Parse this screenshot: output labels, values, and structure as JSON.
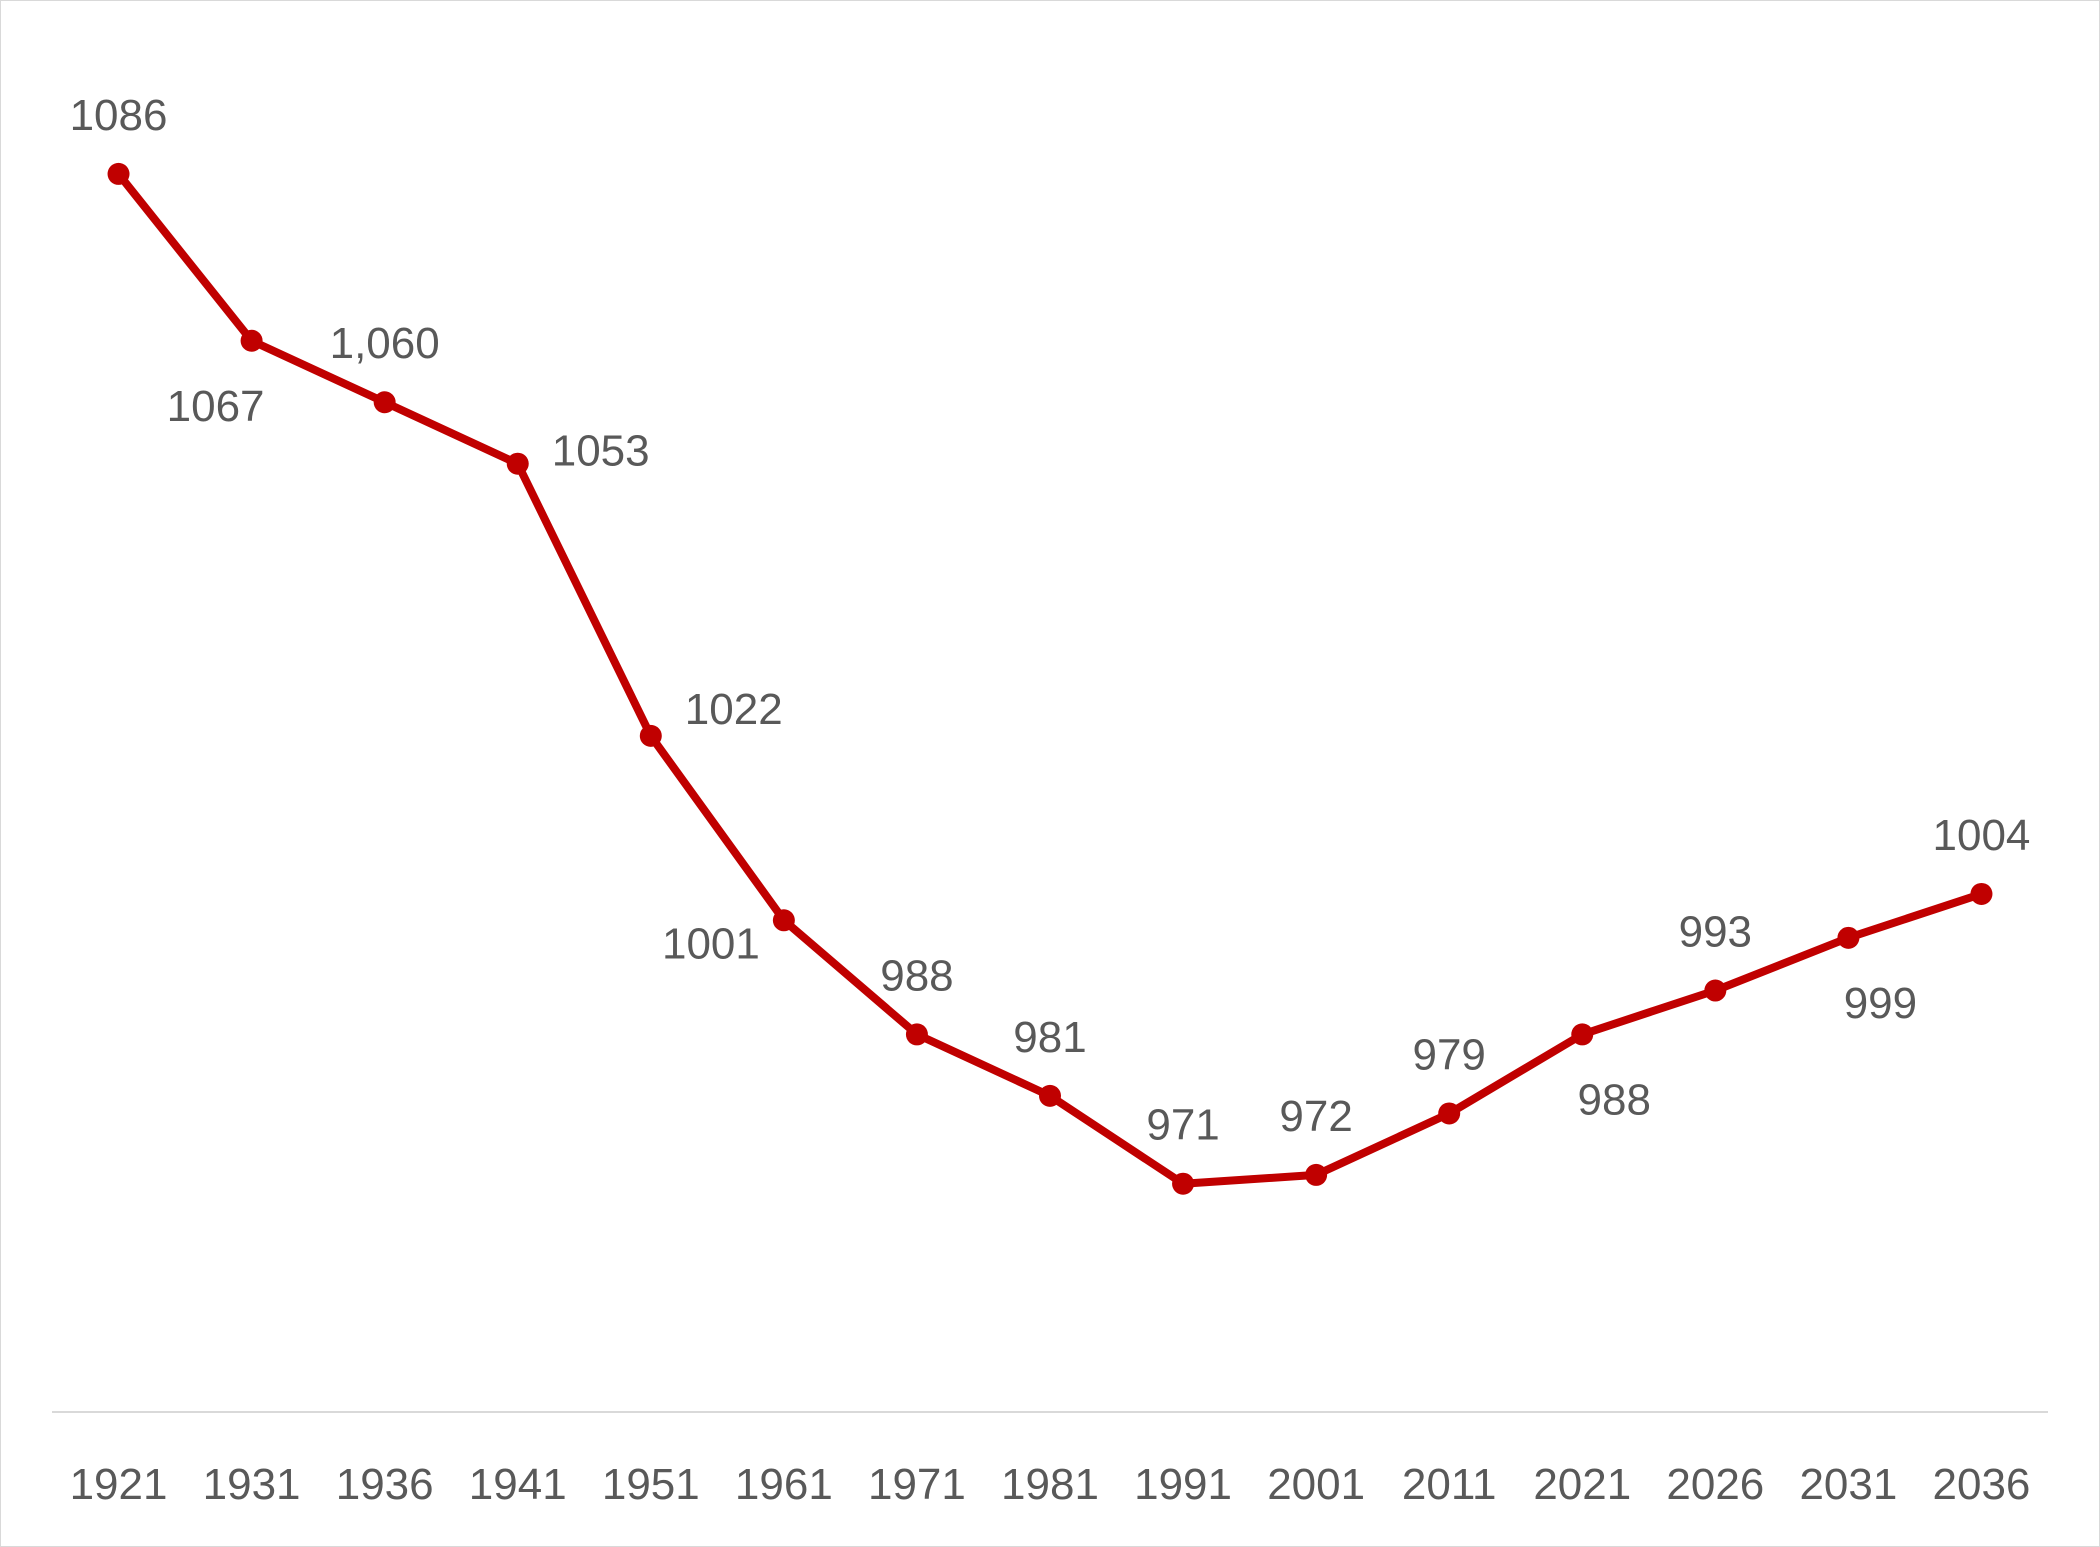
{
  "chart_data": {
    "type": "line",
    "title": "",
    "xlabel": "",
    "ylabel": "",
    "categories": [
      "1921",
      "1931",
      "1936",
      "1941",
      "1951",
      "1961",
      "1971",
      "1981",
      "1991",
      "2001",
      "2011",
      "2021",
      "2026",
      "2031",
      "2036"
    ],
    "series": [
      {
        "values": [
          1086,
          1067,
          1060,
          1053,
          1022,
          1001,
          988,
          981,
          971,
          972,
          979,
          988,
          993,
          999,
          1004
        ],
        "labels": [
          "1086",
          "1067",
          "1,060",
          "1053",
          "1022",
          "1001",
          "988",
          "981",
          "971",
          "972",
          "979",
          "988",
          "993",
          "999",
          "1004"
        ],
        "label_positions": [
          "above",
          "below",
          "above",
          "right",
          "right",
          "left",
          "above",
          "above",
          "above",
          "above",
          "above",
          "below",
          "above",
          "below",
          "above"
        ]
      }
    ],
    "ylim": [
      945,
      1100
    ],
    "grid": false,
    "legend": "none",
    "colors": {
      "line": "#c00000",
      "axis": "#d9d9d9",
      "text": "#595959"
    }
  }
}
